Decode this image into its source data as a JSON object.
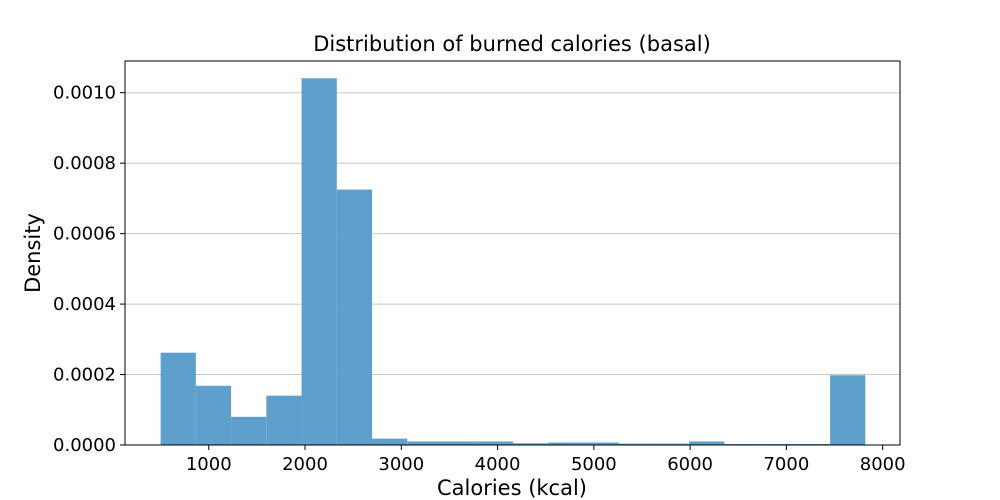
{
  "chart_data": {
    "type": "bar",
    "title": "Distribution of burned calories (basal)",
    "xlabel": "Calories (kcal)",
    "ylabel": "Density",
    "xlim": [
      130,
      8180
    ],
    "ylim": [
      0,
      0.00109
    ],
    "xticks": [
      1000,
      2000,
      3000,
      4000,
      5000,
      6000,
      7000,
      8000
    ],
    "xtick_labels": [
      "1000",
      "2000",
      "3000",
      "4000",
      "5000",
      "6000",
      "7000",
      "8000"
    ],
    "yticks": [
      0,
      0.0002,
      0.0004,
      0.0006,
      0.0008,
      0.001
    ],
    "ytick_labels": [
      "0.0000",
      "0.0002",
      "0.0004",
      "0.0006",
      "0.0008",
      "0.0010"
    ],
    "grid": "y",
    "bar_color": "#5f9fcb",
    "bin_edges": [
      500,
      866,
      1232,
      1598,
      1964,
      2330,
      2696,
      3062,
      3428,
      3794,
      4160,
      4526,
      4892,
      5258,
      5624,
      5990,
      6356,
      6722,
      7088,
      7454,
      7820
    ],
    "values": [
      0.000262,
      0.000168,
      8e-05,
      0.00014,
      0.001041,
      0.000725,
      1.8e-05,
      1e-05,
      1e-05,
      1e-05,
      5e-06,
      7e-06,
      7e-06,
      4e-06,
      4e-06,
      1e-05,
      3e-06,
      3e-06,
      3e-06,
      0.000198
    ]
  }
}
